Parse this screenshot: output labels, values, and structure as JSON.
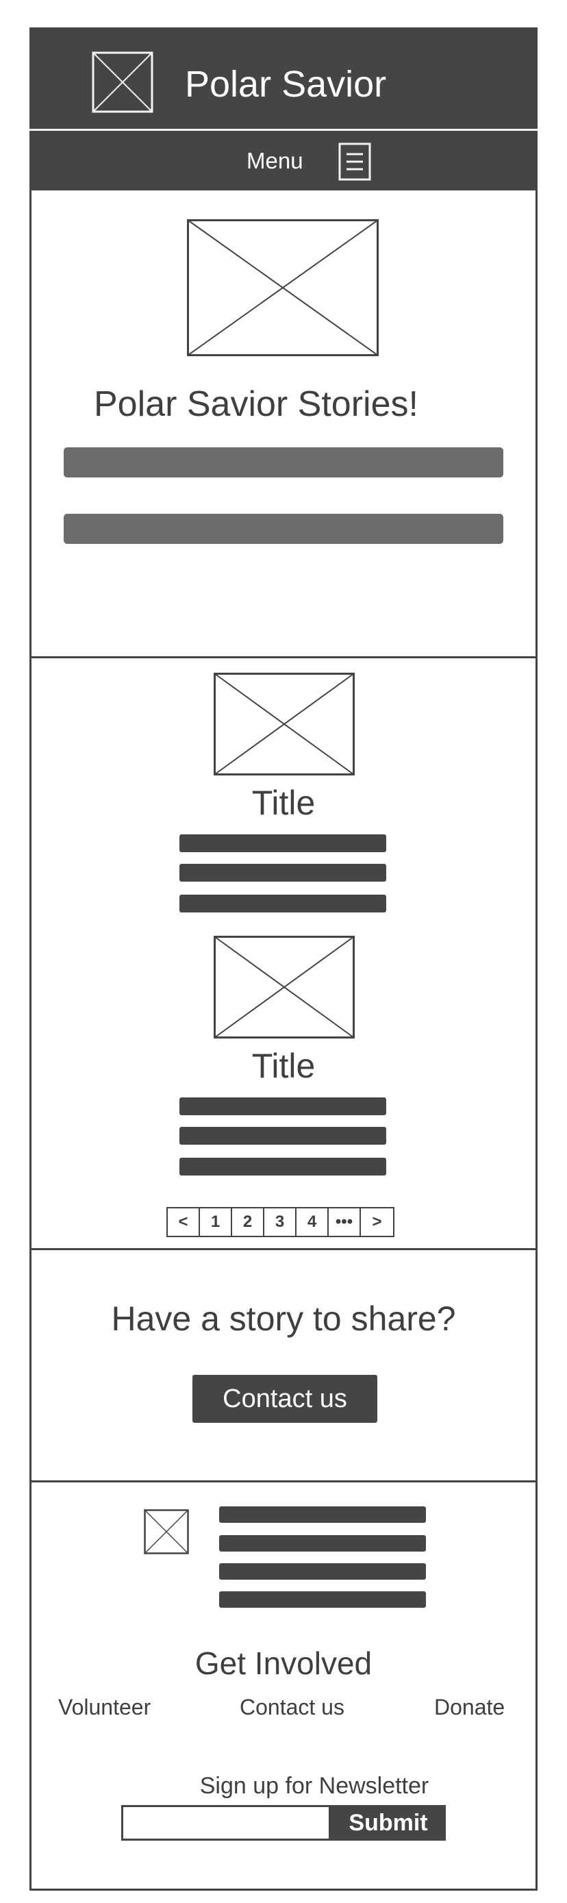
{
  "header": {
    "site_title": "Polar Savior",
    "logo_icon": "image-placeholder-icon"
  },
  "menubar": {
    "label": "Menu",
    "icon": "hamburger-menu-icon"
  },
  "hero": {
    "title": "Polar Savior Stories!",
    "image_icon": "image-placeholder-icon"
  },
  "stories": {
    "cards": [
      {
        "title": "Title"
      },
      {
        "title": "Title"
      }
    ],
    "pagination": [
      "<",
      "1",
      "2",
      "3",
      "4",
      "•••",
      ">"
    ]
  },
  "share": {
    "title": "Have a story to share?",
    "button_label": "Contact us"
  },
  "footer": {
    "involved_title": "Get Involved",
    "links": [
      "Volunteer",
      "Contact us",
      "Donate"
    ],
    "newsletter_label": "Sign up for Newsletter",
    "newsletter_input_value": "",
    "submit_label": "Submit"
  },
  "colors": {
    "dark": "#474544",
    "bar_gray": "#6d6c6b",
    "text": "#3f3f3f",
    "background": "#ffffff"
  }
}
